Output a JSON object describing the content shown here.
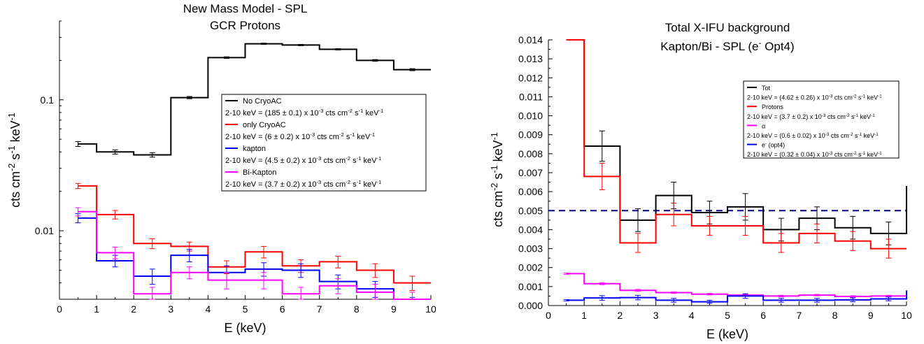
{
  "chart_data": [
    {
      "type": "line",
      "step": "histogram",
      "title": "New Mass Model - SPL",
      "subtitle": "GCR Protons",
      "xlabel": "E (keV)",
      "ylabel_main": "cts cm",
      "ylabel_sup1": "-2",
      "ylabel_mid": " s",
      "ylabel_sup2": "-1",
      "ylabel_end": " keV",
      "ylabel_sup3": "-1",
      "yscale": "log",
      "xlim": [
        0,
        10
      ],
      "ylim": [
        0.003,
        0.4
      ],
      "xticks": [
        "0",
        "1",
        "2",
        "3",
        "4",
        "5",
        "6",
        "7",
        "8",
        "9",
        "10"
      ],
      "yticks": [
        {
          "v": 0.01,
          "label": "0.01"
        },
        {
          "v": 0.1,
          "label": "0.1"
        }
      ],
      "bin_edges": [
        0.5,
        1,
        2,
        3,
        4,
        5,
        6,
        7,
        8,
        9,
        10
      ],
      "bin_centers": [
        0.5,
        1.5,
        2.5,
        3.5,
        4.5,
        5.5,
        6.5,
        7.5,
        8.5,
        9.5
      ],
      "legend_position": "center-right",
      "legend": [
        {
          "name": "No CryoAC",
          "color": "#000000",
          "stat_pre": "2-10 keV = (185 ± 0.1) x 10",
          "stat_exp": "-3",
          "stat_post": " cts cm",
          "stat_u1": "-2",
          "stat_s": " s",
          "stat_u2": "-1",
          "stat_k": " keV",
          "stat_u3": "-1"
        },
        {
          "name": "only CryoAC",
          "color": "#ff0000",
          "stat_pre": "2-10 keV = (6 ± 0.2) x 10",
          "stat_exp": "-3",
          "stat_post": " cts cm",
          "stat_u1": "-2",
          "stat_s": " s",
          "stat_u2": "-1",
          "stat_k": " keV",
          "stat_u3": "-1"
        },
        {
          "name": "kapton",
          "color": "#0000ff",
          "stat_pre": "2-10 keV = (4.5 ± 0.2) x 10",
          "stat_exp": "-3",
          "stat_post": " cts cm",
          "stat_u1": "-2",
          "stat_s": " s",
          "stat_u2": "-1",
          "stat_k": " keV",
          "stat_u3": "-1"
        },
        {
          "name": "Bi-Kapton",
          "color": "#ff00ff",
          "stat_pre": "2-10 keV = (3.7 ± 0.2) x 10",
          "stat_exp": "-3",
          "stat_post": " cts cm",
          "stat_u1": "-2",
          "stat_s": " s",
          "stat_u2": "-1",
          "stat_k": " keV",
          "stat_u3": "-1"
        }
      ],
      "series": [
        {
          "name": "No CryoAC",
          "color": "#000000",
          "values": [
            0.046,
            0.04,
            0.038,
            0.104,
            0.21,
            0.268,
            0.262,
            0.243,
            0.2,
            0.17
          ],
          "errors": [
            0.002,
            0.0015,
            0.0015,
            0.002,
            0.003,
            0.003,
            0.003,
            0.003,
            0.003,
            0.003
          ]
        },
        {
          "name": "only CryoAC",
          "color": "#ff0000",
          "values": [
            0.022,
            0.0133,
            0.008,
            0.0076,
            0.0053,
            0.0069,
            0.0054,
            0.0058,
            0.005,
            0.004
          ],
          "errors": [
            0.001,
            0.001,
            0.0007,
            0.0006,
            0.0006,
            0.0007,
            0.0006,
            0.0006,
            0.0006,
            0.0005
          ]
        },
        {
          "name": "kapton",
          "color": "#0000ff",
          "values": [
            0.0125,
            0.0059,
            0.0045,
            0.0065,
            0.0048,
            0.0051,
            0.005,
            0.0041,
            0.0036,
            0.0027
          ],
          "errors": [
            0.001,
            0.0006,
            0.0006,
            0.0007,
            0.0006,
            0.0006,
            0.0006,
            0.0005,
            0.0005,
            0.0004
          ]
        },
        {
          "name": "Bi-Kapton",
          "color": "#ff00ff",
          "values": [
            0.014,
            0.0068,
            0.0033,
            0.0048,
            0.0042,
            0.0042,
            0.0033,
            0.0038,
            0.0034,
            0.0029
          ],
          "errors": [
            0.001,
            0.0007,
            0.0004,
            0.0005,
            0.0006,
            0.0006,
            0.0004,
            0.0005,
            0.0005,
            0.0005
          ]
        }
      ]
    },
    {
      "type": "line",
      "step": "histogram",
      "title": "Total X-IFU background",
      "subtitle": "Kapton/Bi - SPL (e",
      "subtitle_sup": "-",
      "subtitle_end": " Opt4)",
      "xlabel": "E (keV)",
      "ylabel_main": "cts cm",
      "ylabel_sup1": "-2",
      "ylabel_mid": " s",
      "ylabel_sup2": "-1",
      "ylabel_end": " keV",
      "ylabel_sup3": "-1",
      "yscale": "linear",
      "xlim": [
        0,
        10
      ],
      "ylim": [
        0,
        0.014
      ],
      "xticks": [
        "0",
        "1",
        "2",
        "3",
        "4",
        "5",
        "6",
        "7",
        "8",
        "9",
        "10"
      ],
      "yticks": [
        "0.000",
        "0.001",
        "0.002",
        "0.003",
        "0.004",
        "0.005",
        "0.006",
        "0.007",
        "0.008",
        "0.009",
        "0.010",
        "0.011",
        "0.012",
        "0.013",
        "0.014"
      ],
      "reference_line": {
        "y": 0.005,
        "color": "#000080",
        "style": "dashed"
      },
      "bin_edges": [
        1,
        2,
        3,
        4,
        5,
        6,
        7,
        8,
        9,
        10
      ],
      "bin_centers": [
        1.5,
        2.5,
        3.5,
        4.5,
        5.5,
        6.5,
        7.5,
        8.5,
        9.5
      ],
      "legend_position": "top-right",
      "legend": [
        {
          "name": "Tot",
          "color": "#000000",
          "stat_pre": "2-10 keV = (4.62 ± 0.26) x 10",
          "stat_exp": "-3",
          "stat_post": " cts cm",
          "stat_u1": "-2",
          "stat_s": " s",
          "stat_u2": "-1",
          "stat_k": " keV",
          "stat_u3": "-1"
        },
        {
          "name": "Protons",
          "color": "#ff0000",
          "stat_pre": "2-10 keV = (3.7 ± 0.2) x 10",
          "stat_exp": "-3",
          "stat_post": " cts cm",
          "stat_u1": "-2",
          "stat_s": " s",
          "stat_u2": "-1",
          "stat_k": " keV",
          "stat_u3": "-1"
        },
        {
          "name": "α",
          "color": "#ff00ff",
          "stat_pre": "2-10 keV = (0.6 ± 0.02) x 10",
          "stat_exp": "-3",
          "stat_post": " cts cm",
          "stat_u1": "-2",
          "stat_s": " s",
          "stat_u2": "-1",
          "stat_k": " keV",
          "stat_u3": "-1"
        },
        {
          "name": "e",
          "name_sup": "-",
          "name_end": " (opt4)",
          "color": "#0000ff",
          "stat_pre": "2-10 keV = (0.32 ± 0.04) x 10",
          "stat_exp": "-3",
          "stat_post": " cts cm",
          "stat_u1": "-2",
          "stat_s": " s",
          "stat_u2": "-1",
          "stat_k": " keV",
          "stat_u3": "-1"
        }
      ],
      "series": [
        {
          "name": "Tot",
          "color": "#000000",
          "first_bin_from": 0.014,
          "values": [
            0.0084,
            0.0045,
            0.0058,
            0.0049,
            0.0052,
            0.004,
            0.0046,
            0.0041,
            0.0038
          ],
          "errors": [
            0.0008,
            0.0006,
            0.0007,
            0.0006,
            0.0007,
            0.0006,
            0.0006,
            0.0006,
            0.0006
          ],
          "final_edge_to": 0.0063
        },
        {
          "name": "Protons",
          "color": "#ff0000",
          "first_bin_from": 0.014,
          "values": [
            0.0068,
            0.0033,
            0.0048,
            0.0042,
            0.0042,
            0.0033,
            0.0038,
            0.0034,
            0.003
          ],
          "errors": [
            0.0007,
            0.0005,
            0.0006,
            0.0005,
            0.0005,
            0.0005,
            0.0005,
            0.0005,
            0.0005
          ]
        },
        {
          "name": "α",
          "color": "#ff00ff",
          "start": 0.5,
          "first_value": 0.00168,
          "values": [
            0.00115,
            0.0008,
            0.00068,
            0.0006,
            0.00055,
            0.0005,
            0.00055,
            0.00048,
            0.0005
          ],
          "errors": [
            5e-05,
            5e-05,
            4e-05,
            4e-05,
            4e-05,
            4e-05,
            4e-05,
            4e-05,
            4e-05
          ]
        },
        {
          "name": "e- (opt4)",
          "color": "#0000ff",
          "start": 0.5,
          "first_value": 0.00028,
          "values": [
            0.0004,
            0.00042,
            0.00028,
            0.0002,
            0.0005,
            0.00028,
            0.00028,
            0.0003,
            0.00035
          ],
          "errors": [
            0.00012,
            0.00012,
            0.0001,
            8e-05,
            0.00012,
            0.0001,
            0.0001,
            0.0001,
            0.0001
          ],
          "final_edge_to": 0.0008
        }
      ]
    }
  ]
}
